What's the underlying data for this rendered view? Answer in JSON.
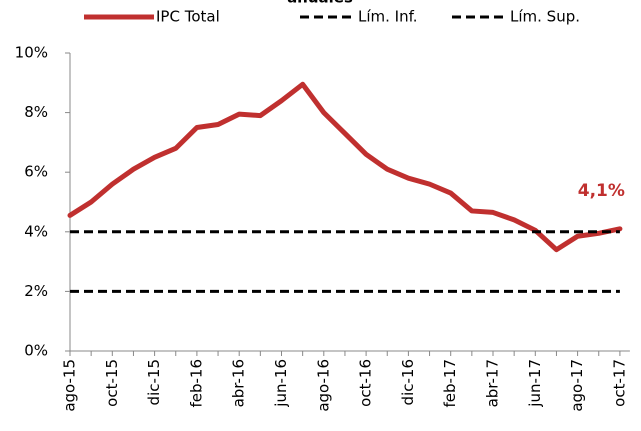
{
  "chart_data": {
    "type": "line",
    "title": "anuales",
    "categories": [
      "ago-15",
      null,
      "oct-15",
      null,
      "dic-15",
      null,
      "feb-16",
      null,
      "abr-16",
      null,
      "jun-16",
      null,
      "ago-16",
      null,
      "oct-16",
      null,
      "dic-16",
      null,
      "feb-17",
      null,
      "abr-17",
      null,
      "jun-17",
      null,
      "ago-17",
      null,
      "oct-17"
    ],
    "series": [
      {
        "name": "IPC Total",
        "color": "#c0302f",
        "values": [
          4.55,
          5.0,
          5.6,
          6.1,
          6.5,
          6.8,
          7.5,
          7.6,
          7.95,
          7.9,
          8.4,
          8.95,
          8.0,
          7.3,
          6.6,
          6.1,
          5.8,
          5.6,
          5.3,
          4.7,
          4.65,
          4.4,
          4.05,
          3.4,
          3.85,
          3.95,
          4.1
        ],
        "value_labels": [
          null,
          null,
          null,
          null,
          null,
          null,
          null,
          null,
          null,
          null,
          null,
          null,
          null,
          null,
          null,
          null,
          null,
          null,
          null,
          null,
          null,
          null,
          null,
          null,
          null,
          null,
          "4,1%"
        ],
        "label_color": "#c0302f"
      },
      {
        "name": "Lím. Inf.",
        "color": "#000000",
        "dashed": true,
        "values": [
          2,
          2,
          2,
          2,
          2,
          2,
          2,
          2,
          2,
          2,
          2,
          2,
          2,
          2,
          2,
          2,
          2,
          2,
          2,
          2,
          2,
          2,
          2,
          2,
          2,
          2,
          2
        ]
      },
      {
        "name": "Lím. Sup.",
        "color": "#000000",
        "dashed": true,
        "values": [
          4,
          4,
          4,
          4,
          4,
          4,
          4,
          4,
          4,
          4,
          4,
          4,
          4,
          4,
          4,
          4,
          4,
          4,
          4,
          4,
          4,
          4,
          4,
          4,
          4,
          4,
          4
        ]
      }
    ],
    "ylim": [
      0,
      10
    ],
    "yticks": [
      {
        "value": 0,
        "label": "0%"
      },
      {
        "value": 2,
        "label": "2%"
      },
      {
        "value": 4,
        "label": "4%"
      },
      {
        "value": 6,
        "label": "6%"
      },
      {
        "value": 8,
        "label": "8%"
      },
      {
        "value": 10,
        "label": "10%"
      }
    ]
  }
}
